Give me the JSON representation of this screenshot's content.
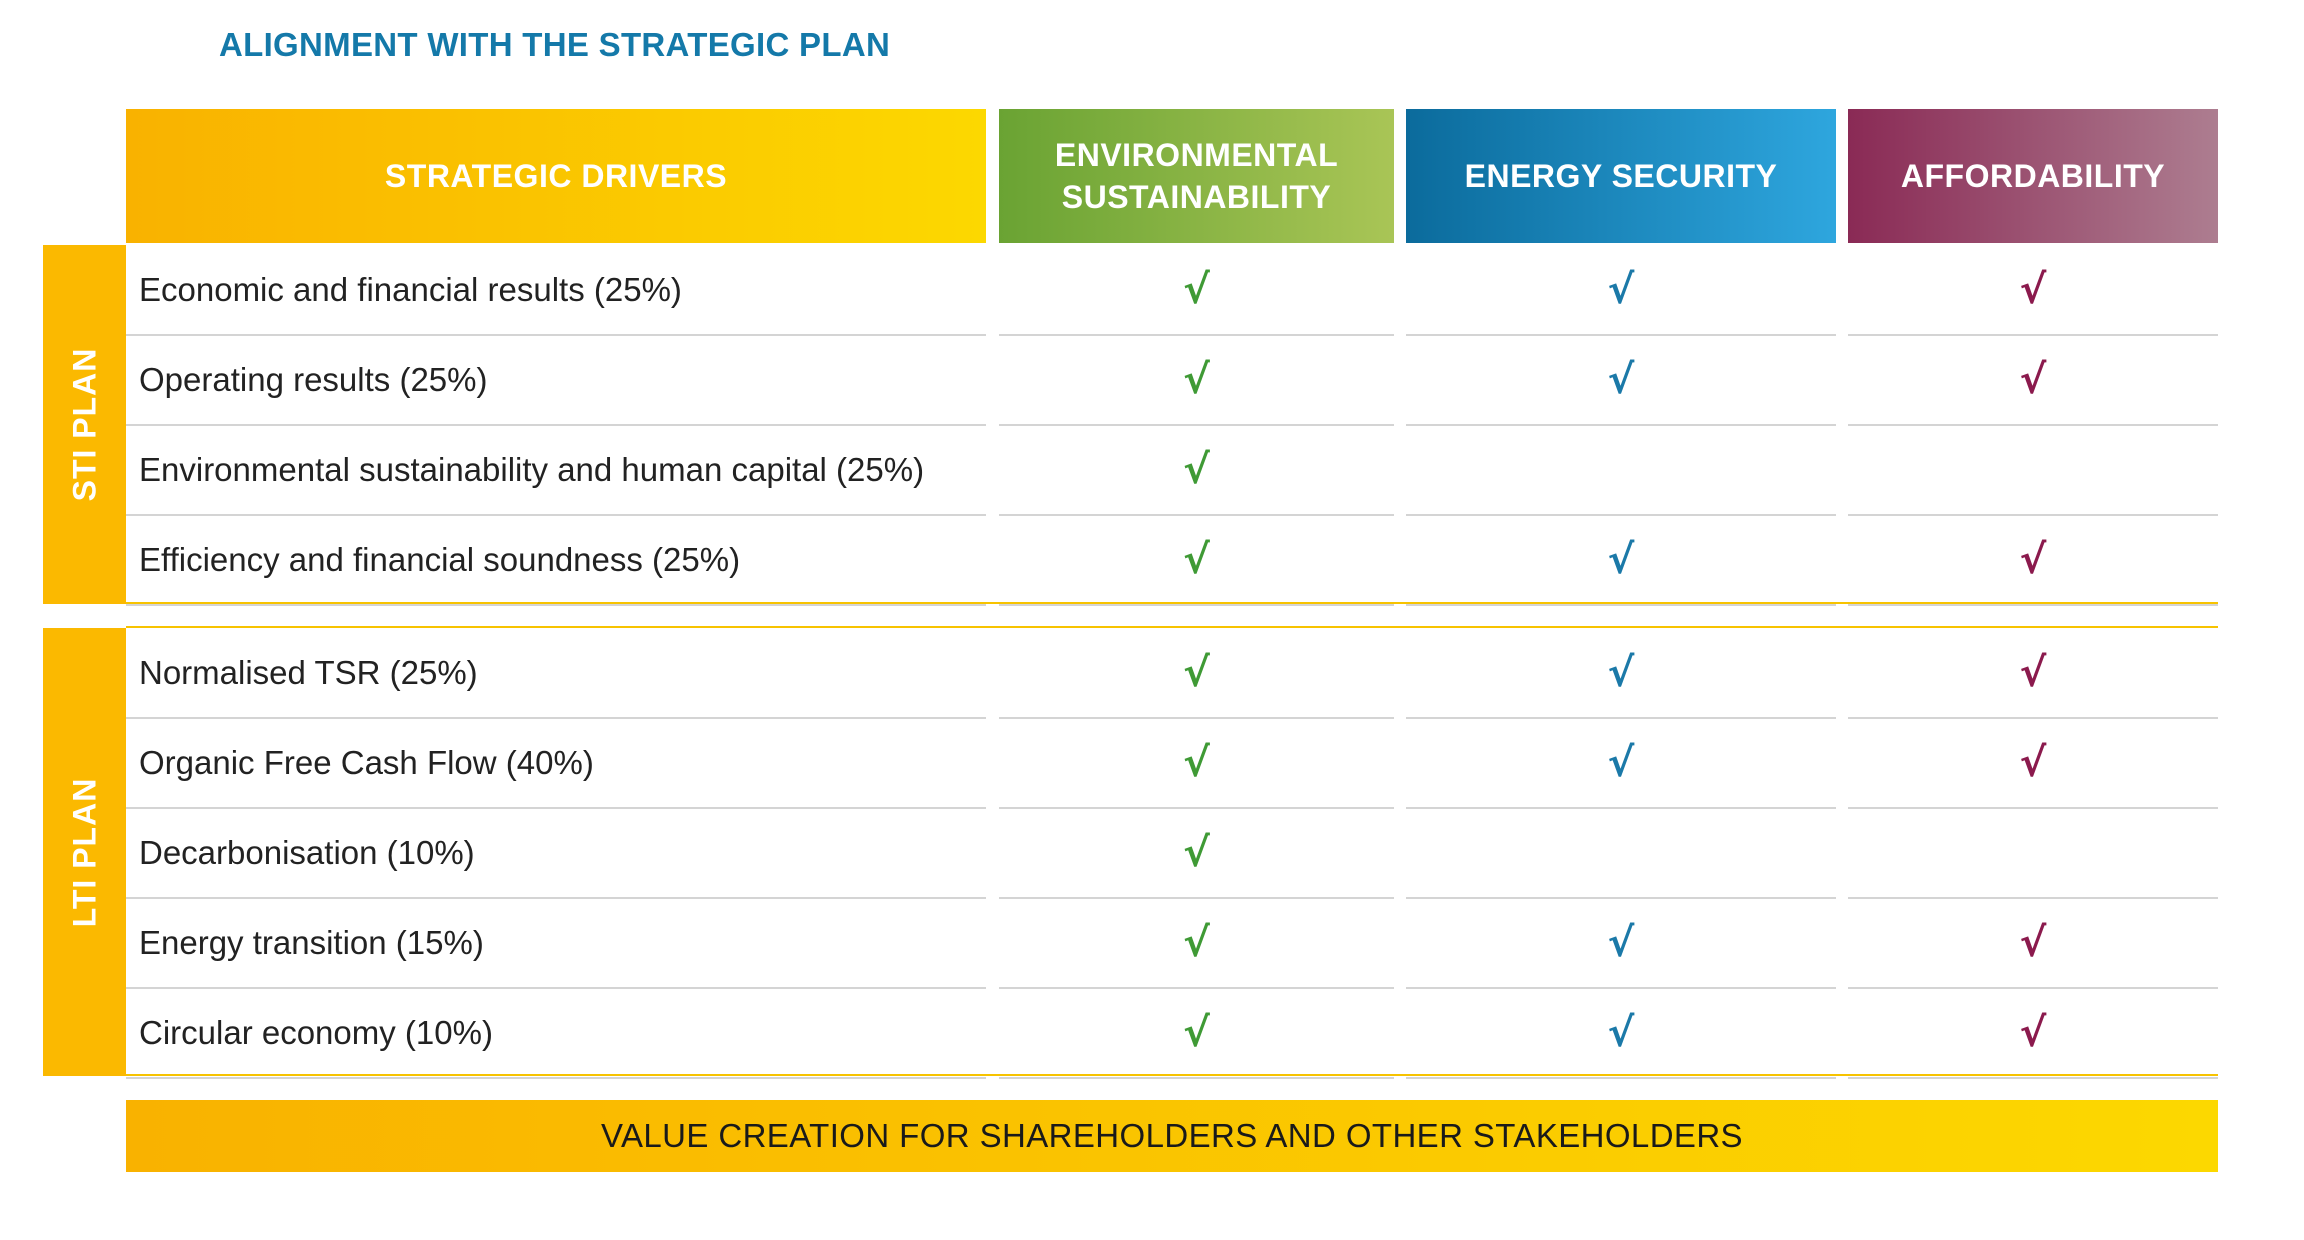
{
  "title": "ALIGNMENT WITH THE STRATEGIC PLAN",
  "headers": {
    "drivers": "STRATEGIC DRIVERS",
    "environmental_line1": "ENVIRONMENTAL",
    "environmental_line2": "SUSTAINABILITY",
    "energy_security": "ENERGY SECURITY",
    "affordability": "AFFORDABILITY"
  },
  "colors": {
    "title": "#1479a9",
    "gold": "#fbb900",
    "environmental": "#3f9a35",
    "energy_security": "#1b79a8",
    "affordability": "#8b1a4d"
  },
  "check_symbol": "√",
  "sti": {
    "label": "STI PLAN",
    "rows": [
      {
        "label": "Economic and financial results (25%)",
        "env": true,
        "sec": true,
        "aff": true
      },
      {
        "label": "Operating results (25%)",
        "env": true,
        "sec": true,
        "aff": true
      },
      {
        "label": "Environmental sustainability and human capital (25%)",
        "env": true,
        "sec": false,
        "aff": false
      },
      {
        "label": "Efficiency and financial soundness (25%)",
        "env": true,
        "sec": true,
        "aff": true
      }
    ]
  },
  "lti": {
    "label": "LTI PLAN",
    "rows": [
      {
        "label": "Normalised TSR (25%)",
        "env": true,
        "sec": true,
        "aff": true
      },
      {
        "label": "Organic Free Cash Flow (40%)",
        "env": true,
        "sec": true,
        "aff": true
      },
      {
        "label": "Decarbonisation (10%)",
        "env": true,
        "sec": false,
        "aff": false
      },
      {
        "label": "Energy transition (15%)",
        "env": true,
        "sec": true,
        "aff": true
      },
      {
        "label": "Circular economy (10%)",
        "env": true,
        "sec": true,
        "aff": true
      }
    ]
  },
  "footer": "VALUE CREATION FOR SHAREHOLDERS AND OTHER STAKEHOLDERS"
}
